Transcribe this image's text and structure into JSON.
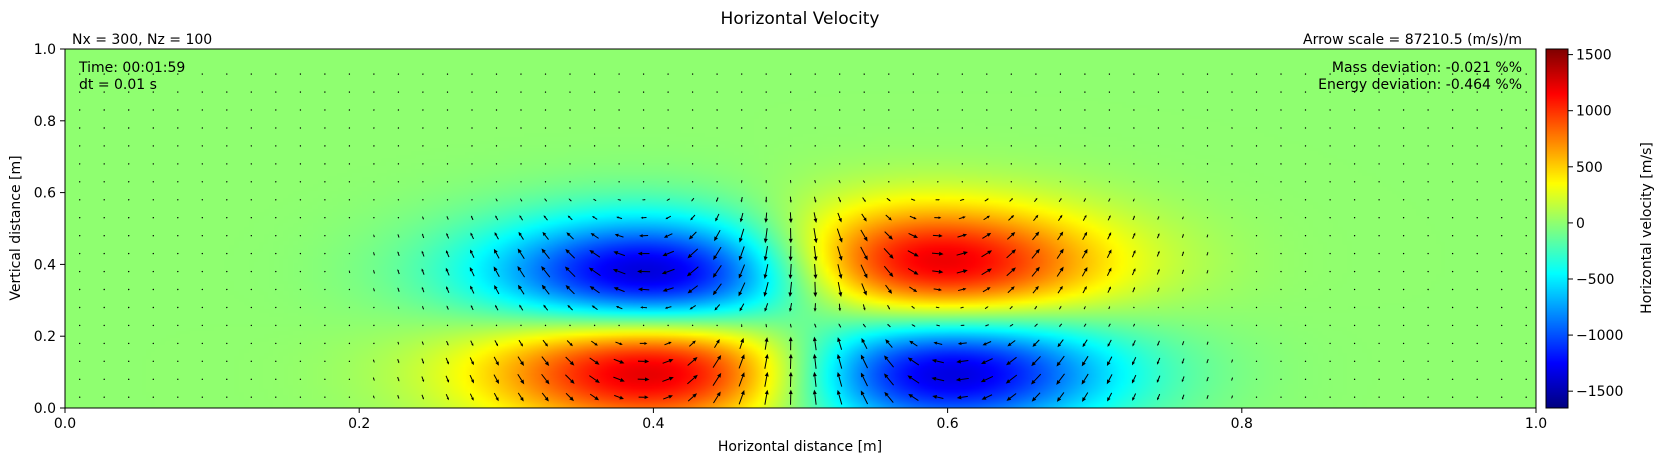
{
  "chart_data": {
    "type": "heatmap",
    "title": "Horizontal Velocity",
    "annotations": {
      "grid_info": "Nx = 300, Nz = 100",
      "arrow_scale": "Arrow scale = 87210.5 (m/s)/m",
      "time": "Time: 00:01:59",
      "dt": "dt = 0.01 s",
      "mass_deviation": "Mass deviation: -0.021 %%",
      "energy_deviation": "Energy deviation: -0.464 %%"
    },
    "xlabel": "Horizontal distance [m]",
    "ylabel": "Vertical distance [m]",
    "xlim": [
      0,
      1
    ],
    "ylim": [
      0,
      1
    ],
    "xticks": [
      0.0,
      0.2,
      0.4,
      0.6,
      0.8,
      1.0
    ],
    "xtick_labels": [
      "0.0",
      "0.2",
      "0.4",
      "0.6",
      "0.8",
      "1.0"
    ],
    "yticks": [
      0.0,
      0.2,
      0.4,
      0.6,
      0.8,
      1.0
    ],
    "ytick_labels": [
      "0.0",
      "0.2",
      "0.4",
      "0.6",
      "0.8",
      "1.0"
    ],
    "colormap": "jet",
    "colorbar": {
      "label": "Horizontal velocity [m/s]",
      "range": [
        -1650,
        1550
      ],
      "ticks": [
        1500,
        1000,
        500,
        0,
        -500,
        -1000,
        -1500
      ],
      "tick_labels": [
        "1500",
        "1000",
        "500",
        "0",
        "−500",
        "−1000",
        "−1500"
      ]
    },
    "field_features": [
      {
        "x": 0.41,
        "y": 0.37,
        "value": -1600,
        "description": "negative lobe, upper left"
      },
      {
        "x": 0.58,
        "y": 0.4,
        "value": 1400,
        "description": "positive lobe, upper right"
      },
      {
        "x": 0.41,
        "y": 0.11,
        "value": 1450,
        "description": "positive lobe, lower left"
      },
      {
        "x": 0.59,
        "y": 0.1,
        "value": -1500,
        "description": "negative lobe, lower right"
      }
    ],
    "background_value": 0,
    "arrows": "velocity quiver field overlaid on regular grid"
  }
}
